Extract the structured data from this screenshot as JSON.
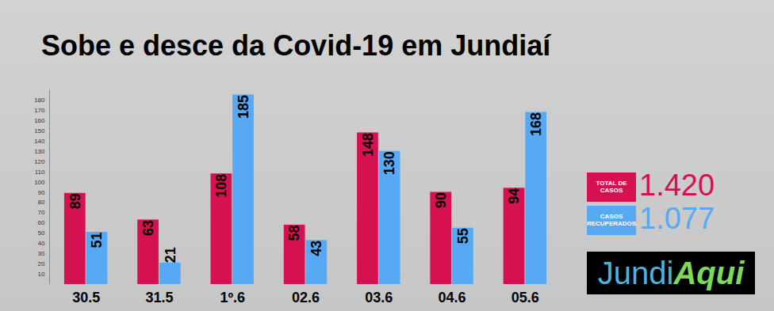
{
  "chart_data": {
    "type": "bar",
    "title": "Sobe e desce da Covid-19 em Jundiaí",
    "categories": [
      "30.5",
      "31.5",
      "1º.6",
      "02.6",
      "03.6",
      "04.6",
      "05.6"
    ],
    "series": [
      {
        "name": "TOTAL DE CASOS",
        "color": "#d5114f",
        "values": [
          89,
          63,
          108,
          58,
          148,
          90,
          94
        ],
        "total": {
          "value": 1420,
          "label": "1.420"
        }
      },
      {
        "name": "CASOS RECUPERADOS",
        "color": "#57a9f4",
        "values": [
          51,
          21,
          185,
          43,
          130,
          55,
          168
        ],
        "total": {
          "value": 1077,
          "label": "1.077"
        }
      }
    ],
    "ylim": [
      0,
      190
    ],
    "yticks": [
      10,
      20,
      30,
      40,
      50,
      60,
      70,
      80,
      90,
      100,
      110,
      120,
      130,
      140,
      150,
      160,
      170,
      180
    ],
    "grid": false,
    "data_labels": true,
    "legend": "right",
    "logo": [
      "Jundi",
      "Aqui"
    ]
  }
}
